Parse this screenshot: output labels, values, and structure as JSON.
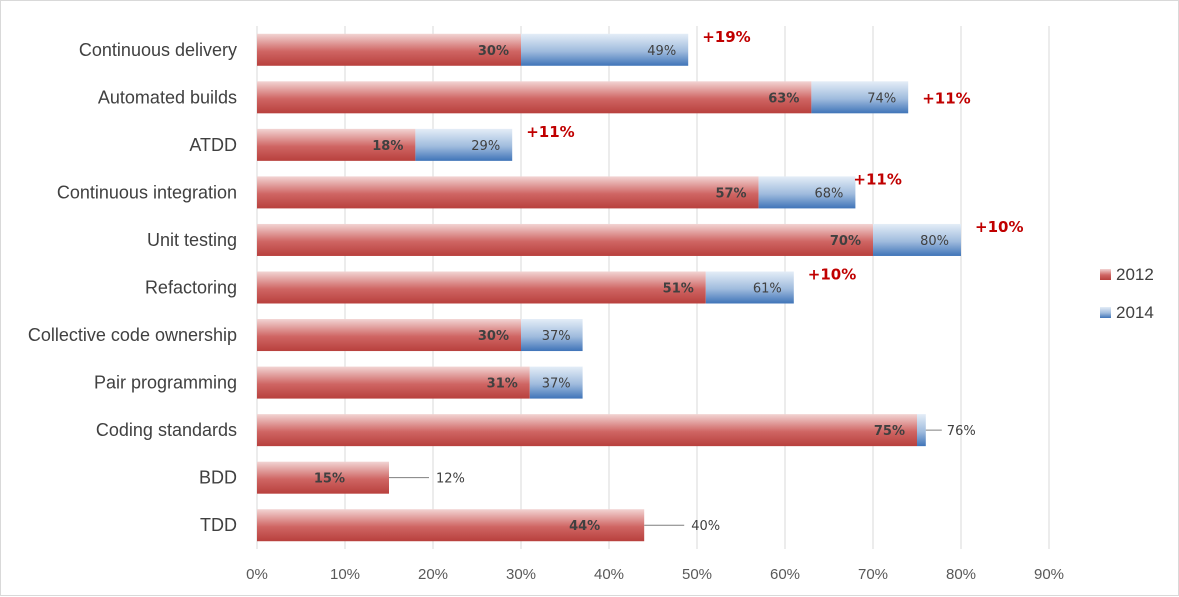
{
  "chart_data": {
    "type": "bar",
    "orientation": "horizontal",
    "categories": [
      "Continuous delivery",
      "Automated builds",
      "ATDD",
      "Continuous integration",
      "Unit testing",
      "Refactoring",
      "Collective code ownership",
      "Pair programming",
      "Coding standards",
      "BDD",
      "TDD"
    ],
    "series": [
      {
        "name": "2012",
        "values": [
          30,
          63,
          18,
          57,
          70,
          51,
          30,
          31,
          75,
          15,
          44
        ],
        "labels": [
          "30%",
          "63%",
          "18%",
          "57%",
          "70%",
          "51%",
          "30%",
          "31%",
          "75%",
          "15%",
          "44%"
        ]
      },
      {
        "name": "2014",
        "values": [
          49,
          74,
          29,
          68,
          80,
          61,
          37,
          37,
          76,
          12,
          40
        ],
        "labels": [
          "49%",
          "74%",
          "29%",
          "68%",
          "80%",
          "61%",
          "37%",
          "37%",
          "76%",
          "12%",
          "40%"
        ]
      }
    ],
    "annotations": [
      "+19%",
      "+11%",
      "+11%",
      "+11%",
      "+10%",
      "+10%",
      "",
      "",
      "",
      "",
      ""
    ],
    "xlim": [
      0,
      90
    ],
    "xticks": [
      "0%",
      "10%",
      "20%",
      "30%",
      "40%",
      "50%",
      "60%",
      "70%",
      "80%",
      "90%"
    ],
    "grid": true,
    "legend": "right",
    "colors": {
      "2012": "#c0504d",
      "2014": "#4f81bd",
      "annotation": "#c00000",
      "grid": "#d9d9d9"
    }
  }
}
